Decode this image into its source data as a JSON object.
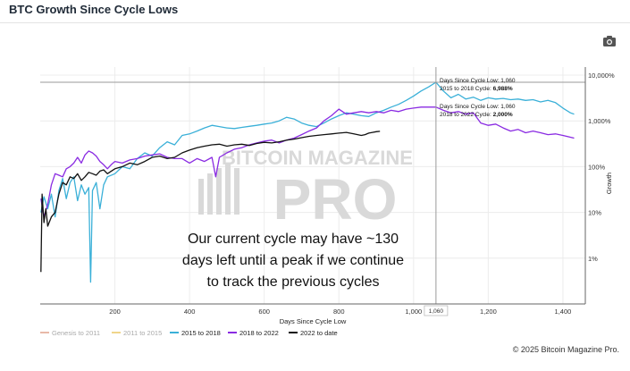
{
  "header": {
    "title": "BTC Growth Since Cycle Lows"
  },
  "toolbar": {
    "camera_icon": "camera-icon"
  },
  "footer": {
    "copyright": "© 2025 Bitcoin Magazine Pro."
  },
  "watermark": {
    "line1": "BITCOIN MAGAZINE",
    "line2": "PRO"
  },
  "chart_data": {
    "type": "line",
    "xlabel": "Days Since Cycle Low",
    "ylabel": "Growth",
    "y_scale": "log",
    "xlim": [
      0,
      1460
    ],
    "ylim": [
      0.1,
      15000
    ],
    "x_ticks": [
      200,
      400,
      600,
      800,
      1000,
      1200,
      1400
    ],
    "x_tick_labels": [
      "200",
      "400",
      "600",
      "800",
      "1,000",
      "1,200",
      "1,400"
    ],
    "y_ticks": [
      1,
      10,
      100,
      1000,
      10000
    ],
    "y_tick_labels": [
      "1%",
      "10%",
      "100%",
      "1,000%",
      "10,000%"
    ],
    "crosshair": {
      "x": 1060,
      "x_label": "1,060",
      "y": 6988
    },
    "tooltips": [
      {
        "line1": "Days Since Cycle Low: 1,060",
        "line2_prefix": "2015 to 2018 Cycle: ",
        "line2_value": "6,988%"
      },
      {
        "line1": "Days Since Cycle Low: 1,060",
        "line2_prefix": "2018 to 2022 Cycle: ",
        "line2_value": "2,000%"
      }
    ],
    "annotation": {
      "lines": [
        "Our current cycle may have ~130",
        "days left until a peak if we continue",
        "to track the previous cycles"
      ]
    },
    "legend_position": "bottom",
    "series": [
      {
        "name": "Genesis to 2011",
        "color": "#e8b9a8",
        "visible": false,
        "points": []
      },
      {
        "name": "2011 to 2015",
        "color": "#f0d58a",
        "visible": false,
        "points": []
      },
      {
        "name": "2015 to 2018",
        "color": "#3ab0d8",
        "visible": true,
        "points": [
          [
            2,
            10
          ],
          [
            10,
            22
          ],
          [
            20,
            12
          ],
          [
            30,
            25
          ],
          [
            40,
            8
          ],
          [
            50,
            30
          ],
          [
            60,
            55
          ],
          [
            70,
            20
          ],
          [
            80,
            45
          ],
          [
            90,
            60
          ],
          [
            100,
            18
          ],
          [
            110,
            40
          ],
          [
            120,
            25
          ],
          [
            130,
            35
          ],
          [
            135,
            0.3
          ],
          [
            140,
            30
          ],
          [
            150,
            45
          ],
          [
            160,
            12
          ],
          [
            170,
            40
          ],
          [
            180,
            60
          ],
          [
            200,
            70
          ],
          [
            220,
            100
          ],
          [
            240,
            90
          ],
          [
            260,
            150
          ],
          [
            280,
            200
          ],
          [
            300,
            170
          ],
          [
            320,
            260
          ],
          [
            340,
            350
          ],
          [
            360,
            300
          ],
          [
            380,
            480
          ],
          [
            400,
            520
          ],
          [
            420,
            600
          ],
          [
            440,
            700
          ],
          [
            460,
            800
          ],
          [
            480,
            750
          ],
          [
            500,
            700
          ],
          [
            520,
            680
          ],
          [
            540,
            720
          ],
          [
            560,
            760
          ],
          [
            580,
            800
          ],
          [
            600,
            850
          ],
          [
            620,
            900
          ],
          [
            640,
            1000
          ],
          [
            660,
            1200
          ],
          [
            680,
            1100
          ],
          [
            700,
            900
          ],
          [
            720,
            800
          ],
          [
            740,
            750
          ],
          [
            760,
            900
          ],
          [
            780,
            1100
          ],
          [
            800,
            1300
          ],
          [
            820,
            1500
          ],
          [
            840,
            1400
          ],
          [
            860,
            1300
          ],
          [
            880,
            1250
          ],
          [
            900,
            1500
          ],
          [
            920,
            1700
          ],
          [
            940,
            2000
          ],
          [
            960,
            2300
          ],
          [
            980,
            2800
          ],
          [
            1000,
            3500
          ],
          [
            1020,
            4500
          ],
          [
            1040,
            5500
          ],
          [
            1060,
            6988
          ],
          [
            1080,
            4500
          ],
          [
            1100,
            3200
          ],
          [
            1120,
            3800
          ],
          [
            1140,
            3000
          ],
          [
            1160,
            3300
          ],
          [
            1180,
            2800
          ],
          [
            1200,
            3200
          ],
          [
            1220,
            3000
          ],
          [
            1240,
            3100
          ],
          [
            1260,
            2900
          ],
          [
            1280,
            3000
          ],
          [
            1300,
            2800
          ],
          [
            1320,
            2900
          ],
          [
            1340,
            2600
          ],
          [
            1360,
            2800
          ],
          [
            1380,
            2500
          ],
          [
            1400,
            1900
          ],
          [
            1420,
            1500
          ],
          [
            1430,
            1400
          ]
        ]
      },
      {
        "name": "2018 to 2022",
        "color": "#8a2be2",
        "visible": true,
        "points": [
          [
            2,
            20
          ],
          [
            10,
            8
          ],
          [
            20,
            15
          ],
          [
            30,
            40
          ],
          [
            40,
            70
          ],
          [
            50,
            65
          ],
          [
            60,
            60
          ],
          [
            70,
            90
          ],
          [
            80,
            100
          ],
          [
            90,
            120
          ],
          [
            100,
            160
          ],
          [
            110,
            120
          ],
          [
            120,
            180
          ],
          [
            130,
            220
          ],
          [
            140,
            200
          ],
          [
            150,
            170
          ],
          [
            160,
            130
          ],
          [
            170,
            110
          ],
          [
            180,
            90
          ],
          [
            190,
            110
          ],
          [
            200,
            130
          ],
          [
            220,
            120
          ],
          [
            240,
            140
          ],
          [
            260,
            150
          ],
          [
            280,
            170
          ],
          [
            300,
            180
          ],
          [
            320,
            190
          ],
          [
            340,
            160
          ],
          [
            360,
            150
          ],
          [
            380,
            150
          ],
          [
            400,
            120
          ],
          [
            420,
            150
          ],
          [
            440,
            130
          ],
          [
            460,
            160
          ],
          [
            470,
            60
          ],
          [
            480,
            160
          ],
          [
            500,
            200
          ],
          [
            520,
            240
          ],
          [
            540,
            260
          ],
          [
            560,
            300
          ],
          [
            580,
            330
          ],
          [
            600,
            360
          ],
          [
            620,
            380
          ],
          [
            640,
            330
          ],
          [
            660,
            380
          ],
          [
            680,
            420
          ],
          [
            700,
            500
          ],
          [
            720,
            600
          ],
          [
            740,
            700
          ],
          [
            760,
            1000
          ],
          [
            780,
            1300
          ],
          [
            800,
            1800
          ],
          [
            820,
            1400
          ],
          [
            840,
            1500
          ],
          [
            860,
            1600
          ],
          [
            880,
            1500
          ],
          [
            900,
            1600
          ],
          [
            920,
            1500
          ],
          [
            940,
            1700
          ],
          [
            960,
            1600
          ],
          [
            980,
            1800
          ],
          [
            1000,
            1900
          ],
          [
            1020,
            2000
          ],
          [
            1040,
            2000
          ],
          [
            1060,
            2000
          ],
          [
            1080,
            1700
          ],
          [
            1100,
            1500
          ],
          [
            1120,
            1600
          ],
          [
            1140,
            1400
          ],
          [
            1160,
            1500
          ],
          [
            1180,
            900
          ],
          [
            1200,
            800
          ],
          [
            1220,
            850
          ],
          [
            1240,
            700
          ],
          [
            1260,
            600
          ],
          [
            1280,
            650
          ],
          [
            1300,
            550
          ],
          [
            1320,
            600
          ],
          [
            1340,
            550
          ],
          [
            1360,
            500
          ],
          [
            1380,
            520
          ],
          [
            1400,
            480
          ],
          [
            1420,
            440
          ],
          [
            1430,
            420
          ]
        ]
      },
      {
        "name": "2022 to date",
        "color": "#111111",
        "visible": true,
        "points": [
          [
            2,
            0.5
          ],
          [
            5,
            25
          ],
          [
            10,
            6
          ],
          [
            15,
            12
          ],
          [
            20,
            5
          ],
          [
            30,
            8
          ],
          [
            40,
            10
          ],
          [
            50,
            25
          ],
          [
            60,
            45
          ],
          [
            70,
            40
          ],
          [
            80,
            60
          ],
          [
            90,
            55
          ],
          [
            100,
            70
          ],
          [
            110,
            50
          ],
          [
            120,
            60
          ],
          [
            130,
            75
          ],
          [
            140,
            70
          ],
          [
            150,
            65
          ],
          [
            160,
            80
          ],
          [
            170,
            85
          ],
          [
            180,
            70
          ],
          [
            200,
            90
          ],
          [
            220,
            100
          ],
          [
            240,
            120
          ],
          [
            260,
            110
          ],
          [
            280,
            130
          ],
          [
            300,
            160
          ],
          [
            320,
            170
          ],
          [
            340,
            150
          ],
          [
            360,
            160
          ],
          [
            380,
            200
          ],
          [
            400,
            230
          ],
          [
            420,
            260
          ],
          [
            440,
            280
          ],
          [
            460,
            300
          ],
          [
            480,
            310
          ],
          [
            500,
            280
          ],
          [
            520,
            300
          ],
          [
            540,
            310
          ],
          [
            560,
            290
          ],
          [
            580,
            320
          ],
          [
            600,
            340
          ],
          [
            620,
            330
          ],
          [
            640,
            350
          ],
          [
            660,
            380
          ],
          [
            680,
            400
          ],
          [
            700,
            430
          ],
          [
            720,
            460
          ],
          [
            740,
            480
          ],
          [
            760,
            500
          ],
          [
            780,
            520
          ],
          [
            800,
            540
          ],
          [
            820,
            560
          ],
          [
            840,
            520
          ],
          [
            860,
            480
          ],
          [
            870,
            500
          ],
          [
            880,
            540
          ],
          [
            890,
            560
          ],
          [
            900,
            580
          ],
          [
            910,
            590
          ]
        ]
      }
    ]
  }
}
